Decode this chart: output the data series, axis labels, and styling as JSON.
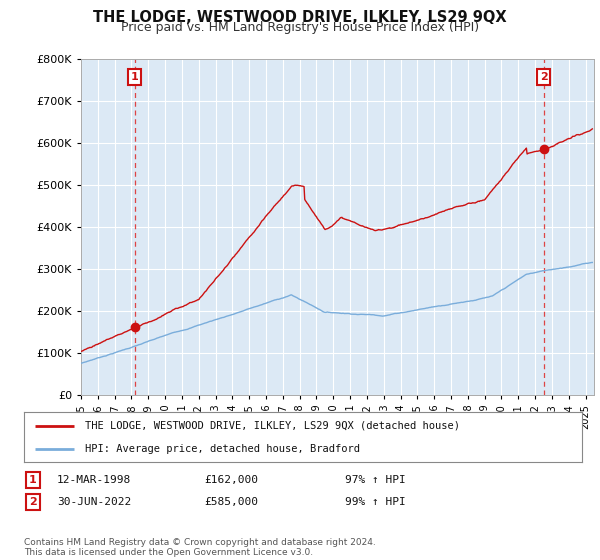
{
  "title": "THE LODGE, WESTWOOD DRIVE, ILKLEY, LS29 9QX",
  "subtitle": "Price paid vs. HM Land Registry's House Price Index (HPI)",
  "ytick_vals": [
    0,
    100000,
    200000,
    300000,
    400000,
    500000,
    600000,
    700000,
    800000
  ],
  "ylim": [
    0,
    800000
  ],
  "xlim_start": 1995.0,
  "xlim_end": 2025.5,
  "sale1_x": 1998.19,
  "sale1_y": 162000,
  "sale2_x": 2022.5,
  "sale2_y": 585000,
  "sale1_label": "1",
  "sale2_label": "2",
  "legend_line1": "THE LODGE, WESTWOOD DRIVE, ILKLEY, LS29 9QX (detached house)",
  "legend_line2": "HPI: Average price, detached house, Bradford",
  "note1_label": "1",
  "note1_date": "12-MAR-1998",
  "note1_price": "£162,000",
  "note1_hpi": "97% ↑ HPI",
  "note2_label": "2",
  "note2_date": "30-JUN-2022",
  "note2_price": "£585,000",
  "note2_hpi": "99% ↑ HPI",
  "footnote": "Contains HM Land Registry data © Crown copyright and database right 2024.\nThis data is licensed under the Open Government Licence v3.0.",
  "hpi_color": "#7aaddb",
  "property_color": "#cc1111",
  "plot_bg_color": "#dce9f5",
  "background_color": "#ffffff",
  "grid_color": "#ffffff",
  "vline_color": "#dd4444"
}
